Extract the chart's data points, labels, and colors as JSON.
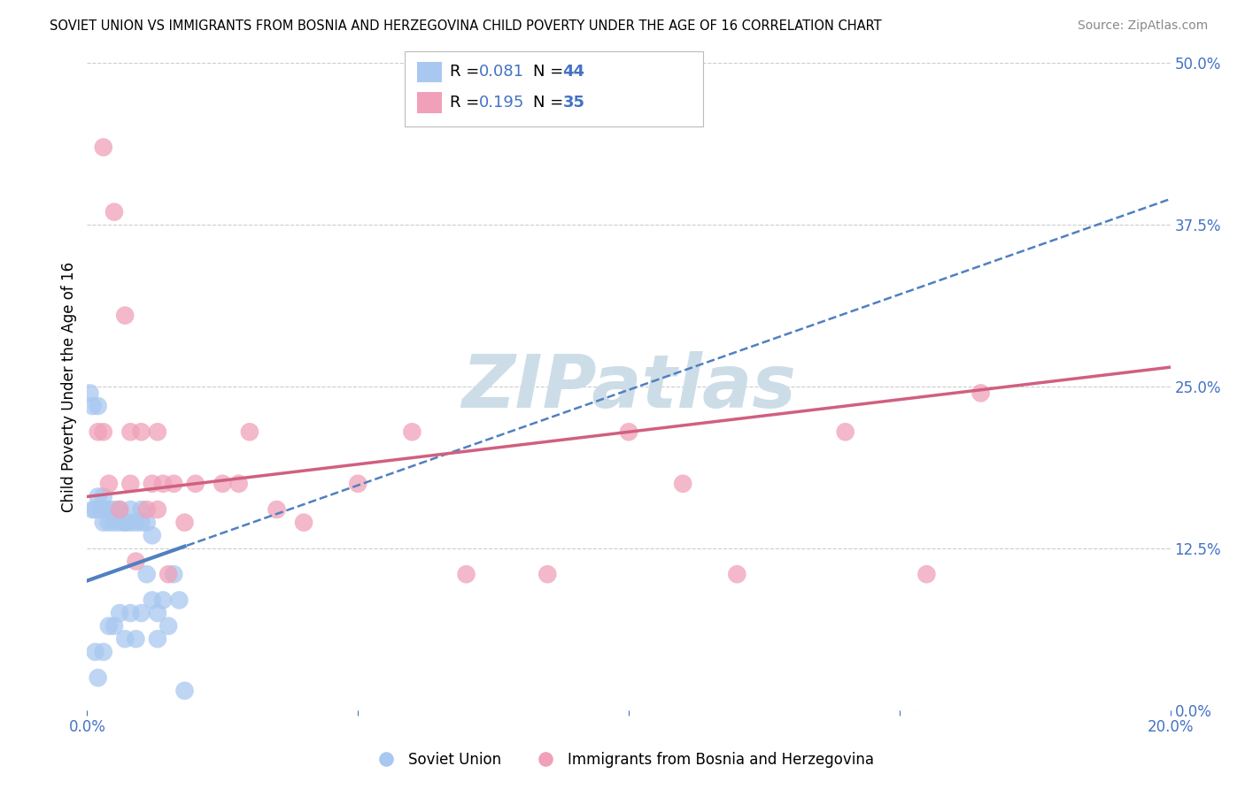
{
  "title": "SOVIET UNION VS IMMIGRANTS FROM BOSNIA AND HERZEGOVINA CHILD POVERTY UNDER THE AGE OF 16 CORRELATION CHART",
  "source": "Source: ZipAtlas.com",
  "ylabel": "Child Poverty Under the Age of 16",
  "xmin": 0.0,
  "xmax": 0.2,
  "ymin": 0.0,
  "ymax": 0.5,
  "yticks": [
    0.0,
    0.125,
    0.25,
    0.375,
    0.5
  ],
  "ytick_labels": [
    "0.0%",
    "12.5%",
    "25.0%",
    "37.5%",
    "50.0%"
  ],
  "xtick_labels": [
    "0.0%",
    "",
    "",
    "",
    "20.0%"
  ],
  "soviet_R": 0.081,
  "soviet_N": 44,
  "bosnia_R": 0.195,
  "bosnia_N": 35,
  "soviet_color": "#a8c8f0",
  "soviet_line_color": "#5080c0",
  "bosnia_color": "#f0a0b8",
  "bosnia_line_color": "#d06080",
  "legend_text_color": "#4472c4",
  "watermark_color": "#ccdde8",
  "grid_color": "#cccccc",
  "soviet_line_x0": 0.0,
  "soviet_line_x1": 0.2,
  "soviet_line_y0": 0.1,
  "soviet_line_y1": 0.395,
  "bosnia_line_x0": 0.0,
  "bosnia_line_x1": 0.2,
  "bosnia_line_y0": 0.165,
  "bosnia_line_y1": 0.265,
  "soviet_x": [
    0.0005,
    0.001,
    0.001,
    0.0015,
    0.0015,
    0.002,
    0.002,
    0.002,
    0.0025,
    0.003,
    0.003,
    0.003,
    0.003,
    0.004,
    0.004,
    0.004,
    0.005,
    0.005,
    0.005,
    0.006,
    0.006,
    0.006,
    0.007,
    0.007,
    0.007,
    0.008,
    0.008,
    0.008,
    0.009,
    0.009,
    0.01,
    0.01,
    0.01,
    0.011,
    0.011,
    0.012,
    0.012,
    0.013,
    0.013,
    0.014,
    0.015,
    0.016,
    0.017,
    0.018
  ],
  "soviet_y": [
    0.245,
    0.235,
    0.155,
    0.155,
    0.045,
    0.235,
    0.165,
    0.025,
    0.155,
    0.165,
    0.155,
    0.145,
    0.045,
    0.155,
    0.145,
    0.065,
    0.155,
    0.145,
    0.065,
    0.145,
    0.155,
    0.075,
    0.145,
    0.145,
    0.055,
    0.155,
    0.145,
    0.075,
    0.145,
    0.055,
    0.155,
    0.145,
    0.075,
    0.145,
    0.105,
    0.085,
    0.135,
    0.075,
    0.055,
    0.085,
    0.065,
    0.105,
    0.085,
    0.015
  ],
  "bosnia_x": [
    0.002,
    0.003,
    0.003,
    0.004,
    0.005,
    0.006,
    0.007,
    0.008,
    0.008,
    0.009,
    0.01,
    0.011,
    0.012,
    0.013,
    0.013,
    0.014,
    0.015,
    0.016,
    0.018,
    0.02,
    0.025,
    0.028,
    0.03,
    0.035,
    0.04,
    0.05,
    0.06,
    0.07,
    0.085,
    0.1,
    0.11,
    0.12,
    0.14,
    0.155,
    0.165
  ],
  "bosnia_y": [
    0.215,
    0.435,
    0.215,
    0.175,
    0.385,
    0.155,
    0.305,
    0.215,
    0.175,
    0.115,
    0.215,
    0.155,
    0.175,
    0.155,
    0.215,
    0.175,
    0.105,
    0.175,
    0.145,
    0.175,
    0.175,
    0.175,
    0.215,
    0.155,
    0.145,
    0.175,
    0.215,
    0.105,
    0.105,
    0.215,
    0.175,
    0.105,
    0.215,
    0.105,
    0.245
  ]
}
